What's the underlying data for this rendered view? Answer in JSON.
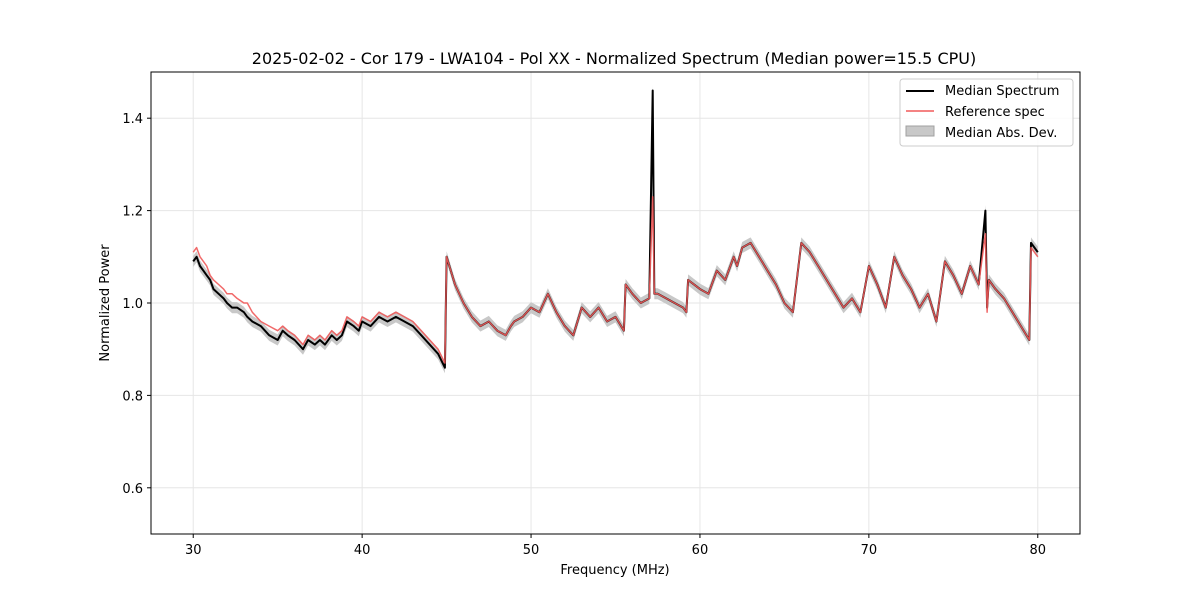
{
  "chart_data": {
    "type": "line",
    "title": "2025-02-02 - Cor 179 - LWA104 - Pol XX - Normalized Spectrum (Median power=15.5 CPU)",
    "xlabel": "Frequency (MHz)",
    "ylabel": "Normalized Power",
    "xlim": [
      27.5,
      82.5
    ],
    "ylim": [
      0.5,
      1.5
    ],
    "xticks": [
      30,
      40,
      50,
      60,
      70,
      80
    ],
    "xtick_labels": [
      "30",
      "40",
      "50",
      "60",
      "70",
      "80"
    ],
    "yticks": [
      0.6,
      0.8,
      1.0,
      1.2,
      1.4
    ],
    "ytick_labels": [
      "0.6",
      "0.8",
      "1.0",
      "1.2",
      "1.4"
    ],
    "grid": true,
    "legend_position": "top-right",
    "legend": [
      {
        "label": "Median Spectrum",
        "kind": "line",
        "color": "#000000"
      },
      {
        "label": "Reference spec",
        "kind": "line",
        "color": "#f05a5a"
      },
      {
        "label": "Median Abs. Dev.",
        "kind": "band",
        "color": "#c8c8c8"
      }
    ],
    "series": [
      {
        "name": "Median Spectrum",
        "color": "#000000",
        "x": [
          30.0,
          30.2,
          30.4,
          30.6,
          30.8,
          31.0,
          31.2,
          31.5,
          31.8,
          32.0,
          32.3,
          32.6,
          33.0,
          33.2,
          33.5,
          34.0,
          34.5,
          35.0,
          35.3,
          35.6,
          36.0,
          36.5,
          36.8,
          37.2,
          37.5,
          37.8,
          38.2,
          38.5,
          38.8,
          39.1,
          39.5,
          39.8,
          40.0,
          40.5,
          41.0,
          41.5,
          42.0,
          42.5,
          43.0,
          43.5,
          44.0,
          44.5,
          44.9,
          45.0,
          45.5,
          46.0,
          46.5,
          47.0,
          47.5,
          48.0,
          48.5,
          48.8,
          49.0,
          49.5,
          50.0,
          50.5,
          51.0,
          51.5,
          52.0,
          52.5,
          53.0,
          53.5,
          54.0,
          54.5,
          55.0,
          55.5,
          55.6,
          56.0,
          56.5,
          57.0,
          57.2,
          57.3,
          57.5,
          58.0,
          58.5,
          59.0,
          59.2,
          59.3,
          60.0,
          60.5,
          61.0,
          61.5,
          62.0,
          62.2,
          62.5,
          63.0,
          63.5,
          64.0,
          64.5,
          65.0,
          65.5,
          66.0,
          66.5,
          67.0,
          67.5,
          68.0,
          68.5,
          69.0,
          69.5,
          70.0,
          70.5,
          71.0,
          71.5,
          72.0,
          72.5,
          73.0,
          73.5,
          74.0,
          74.5,
          75.0,
          75.5,
          76.0,
          76.5,
          76.9,
          77.0,
          77.1,
          77.5,
          78.0,
          78.5,
          79.0,
          79.5,
          79.6,
          80.0
        ],
        "y": [
          1.09,
          1.1,
          1.08,
          1.07,
          1.06,
          1.05,
          1.03,
          1.02,
          1.01,
          1.0,
          0.99,
          0.99,
          0.98,
          0.97,
          0.96,
          0.95,
          0.93,
          0.92,
          0.94,
          0.93,
          0.92,
          0.9,
          0.92,
          0.91,
          0.92,
          0.91,
          0.93,
          0.92,
          0.93,
          0.96,
          0.95,
          0.94,
          0.96,
          0.95,
          0.97,
          0.96,
          0.97,
          0.96,
          0.95,
          0.93,
          0.91,
          0.89,
          0.86,
          1.1,
          1.04,
          1.0,
          0.97,
          0.95,
          0.96,
          0.94,
          0.93,
          0.95,
          0.96,
          0.97,
          0.99,
          0.98,
          1.02,
          0.98,
          0.95,
          0.93,
          0.99,
          0.97,
          0.99,
          0.96,
          0.97,
          0.94,
          1.04,
          1.02,
          1.0,
          1.01,
          1.46,
          1.02,
          1.02,
          1.01,
          1.0,
          0.99,
          0.98,
          1.05,
          1.03,
          1.02,
          1.07,
          1.05,
          1.1,
          1.08,
          1.12,
          1.13,
          1.1,
          1.07,
          1.04,
          1.0,
          0.98,
          1.13,
          1.11,
          1.08,
          1.05,
          1.02,
          0.99,
          1.01,
          0.98,
          1.08,
          1.04,
          0.99,
          1.1,
          1.06,
          1.03,
          0.99,
          1.02,
          0.96,
          1.09,
          1.06,
          1.02,
          1.08,
          1.04,
          1.2,
          0.99,
          1.05,
          1.03,
          1.01,
          0.98,
          0.95,
          0.92,
          1.13,
          1.11
        ]
      },
      {
        "name": "Reference spec",
        "color": "#f05a5a",
        "x": [
          30.0,
          30.2,
          30.4,
          30.6,
          30.8,
          31.0,
          31.2,
          31.5,
          31.8,
          32.0,
          32.3,
          32.6,
          33.0,
          33.2,
          33.5,
          34.0,
          34.5,
          35.0,
          35.3,
          35.6,
          36.0,
          36.5,
          36.8,
          37.2,
          37.5,
          37.8,
          38.2,
          38.5,
          38.8,
          39.1,
          39.5,
          39.8,
          40.0,
          40.5,
          41.0,
          41.5,
          42.0,
          42.5,
          43.0,
          43.5,
          44.0,
          44.5,
          44.9,
          45.0,
          45.5,
          46.0,
          46.5,
          47.0,
          47.5,
          48.0,
          48.5,
          48.8,
          49.0,
          49.5,
          50.0,
          50.5,
          51.0,
          51.5,
          52.0,
          52.5,
          53.0,
          53.5,
          54.0,
          54.5,
          55.0,
          55.5,
          55.6,
          56.0,
          56.5,
          57.0,
          57.2,
          57.3,
          57.5,
          58.0,
          58.5,
          59.0,
          59.2,
          59.3,
          60.0,
          60.5,
          61.0,
          61.5,
          62.0,
          62.2,
          62.5,
          63.0,
          63.5,
          64.0,
          64.5,
          65.0,
          65.5,
          66.0,
          66.5,
          67.0,
          67.5,
          68.0,
          68.5,
          69.0,
          69.5,
          70.0,
          70.5,
          71.0,
          71.5,
          72.0,
          72.5,
          73.0,
          73.5,
          74.0,
          74.5,
          75.0,
          75.5,
          76.0,
          76.5,
          76.9,
          77.0,
          77.1,
          77.5,
          78.0,
          78.5,
          79.0,
          79.5,
          79.6,
          80.0
        ],
        "y": [
          1.11,
          1.12,
          1.1,
          1.09,
          1.08,
          1.06,
          1.05,
          1.04,
          1.03,
          1.02,
          1.02,
          1.01,
          1.0,
          1.0,
          0.98,
          0.96,
          0.95,
          0.94,
          0.95,
          0.94,
          0.93,
          0.91,
          0.93,
          0.92,
          0.93,
          0.92,
          0.94,
          0.93,
          0.94,
          0.97,
          0.96,
          0.95,
          0.97,
          0.96,
          0.98,
          0.97,
          0.98,
          0.97,
          0.96,
          0.94,
          0.92,
          0.9,
          0.87,
          1.1,
          1.04,
          1.0,
          0.97,
          0.95,
          0.96,
          0.94,
          0.93,
          0.95,
          0.96,
          0.97,
          0.99,
          0.98,
          1.02,
          0.98,
          0.95,
          0.93,
          0.99,
          0.97,
          0.99,
          0.96,
          0.97,
          0.94,
          1.04,
          1.02,
          1.0,
          1.01,
          1.23,
          1.02,
          1.02,
          1.01,
          1.0,
          0.99,
          0.98,
          1.05,
          1.03,
          1.02,
          1.07,
          1.05,
          1.1,
          1.08,
          1.12,
          1.13,
          1.1,
          1.07,
          1.04,
          1.0,
          0.98,
          1.13,
          1.11,
          1.08,
          1.05,
          1.02,
          0.99,
          1.01,
          0.98,
          1.08,
          1.04,
          0.99,
          1.1,
          1.06,
          1.03,
          0.99,
          1.02,
          0.96,
          1.09,
          1.06,
          1.02,
          1.08,
          1.04,
          1.15,
          0.98,
          1.05,
          1.03,
          1.01,
          0.98,
          0.95,
          0.92,
          1.12,
          1.1
        ]
      }
    ],
    "band": {
      "name": "Median Abs. Dev.",
      "halfwidth": 0.012
    }
  }
}
